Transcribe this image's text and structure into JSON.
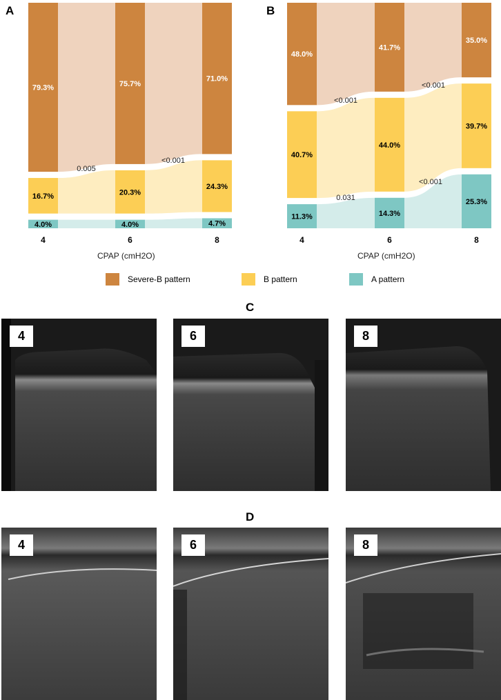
{
  "legend": [
    {
      "label": "Severe-B pattern",
      "color": "#cd853f"
    },
    {
      "label": "B pattern",
      "color": "#fcce55"
    },
    {
      "label": "A pattern",
      "color": "#7ec7c3"
    }
  ],
  "flow_colors": {
    "severe": "#efd3be",
    "b": "#feedc0",
    "a": "#d4ecea"
  },
  "chart_data": [
    {
      "panel": "A",
      "type": "bar",
      "categories": [
        "4",
        "6",
        "8"
      ],
      "xlabel": "CPAP (cmH2O)",
      "series": [
        {
          "name": "Severe-B pattern",
          "values": [
            79.3,
            75.7,
            71.0
          ],
          "labels": [
            "79.3%",
            "75.7%",
            "71.0%"
          ]
        },
        {
          "name": "B pattern",
          "values": [
            16.7,
            20.3,
            24.3
          ],
          "labels": [
            "16.7%",
            "20.3%",
            "24.3%"
          ]
        },
        {
          "name": "A pattern",
          "values": [
            4.0,
            4.0,
            4.7
          ],
          "labels": [
            "4.0%",
            "4.0%",
            "4.7%"
          ]
        }
      ],
      "annotations": [
        "0.005",
        "<0.001"
      ]
    },
    {
      "panel": "B",
      "type": "bar",
      "categories": [
        "4",
        "6",
        "8"
      ],
      "xlabel": "CPAP (cmH2O)",
      "series": [
        {
          "name": "Severe-B pattern",
          "values": [
            48.0,
            41.7,
            35.0
          ],
          "labels": [
            "48.0%",
            "41.7%",
            "35.0%"
          ]
        },
        {
          "name": "B pattern",
          "values": [
            40.7,
            44.0,
            39.7
          ],
          "labels": [
            "40.7%",
            "44.0%",
            "39.7%"
          ]
        },
        {
          "name": "A pattern",
          "values": [
            11.3,
            14.3,
            25.3
          ],
          "labels": [
            "11.3%",
            "14.3%",
            "25.3%"
          ]
        }
      ],
      "annotations": [
        "<0.001",
        "<0.001",
        "0.031",
        "<0.001"
      ]
    }
  ],
  "panels": {
    "a": "A",
    "b": "B",
    "c": "C",
    "d": "D"
  },
  "ultrasound": {
    "c": [
      {
        "label": "4"
      },
      {
        "label": "6"
      },
      {
        "label": "8"
      }
    ],
    "d": [
      {
        "label": "4"
      },
      {
        "label": "6"
      },
      {
        "label": "8"
      }
    ]
  }
}
